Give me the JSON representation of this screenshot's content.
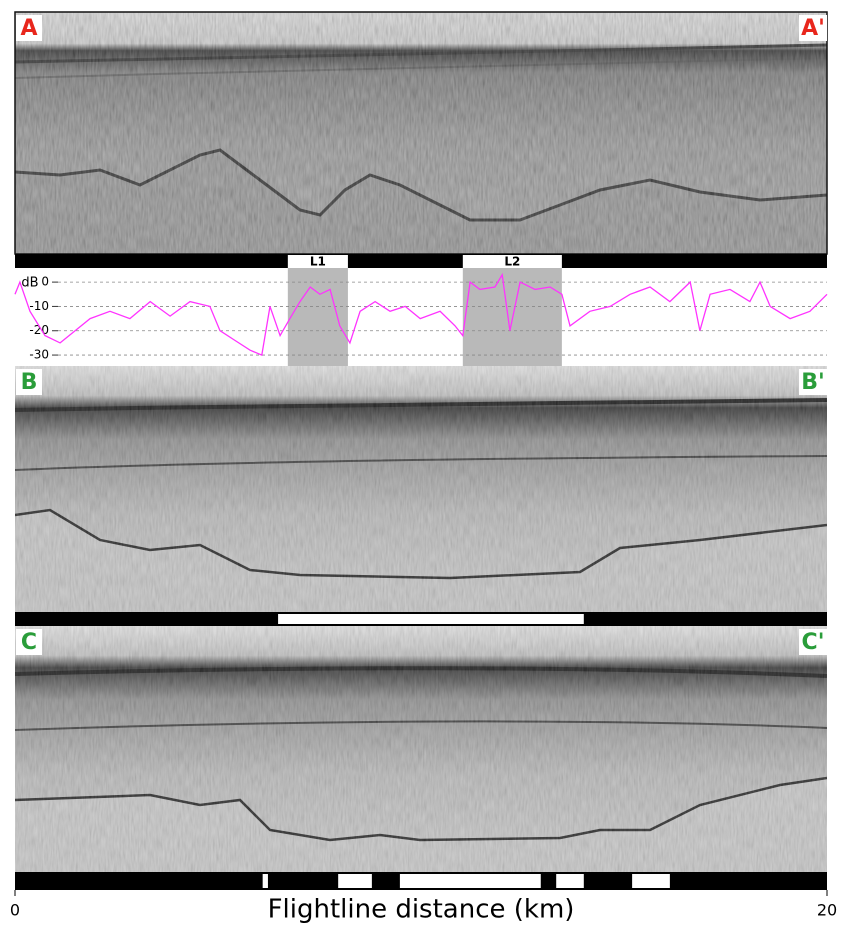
{
  "chart_data": {
    "type": "line",
    "y_label": "dB",
    "x_label": "Flightline distance (km)",
    "x": [
      0,
      0.12,
      0.37,
      0.74,
      1.11,
      1.48,
      1.85,
      2.34,
      2.83,
      3.33,
      3.82,
      4.31,
      4.8,
      5.05,
      5.42,
      5.79,
      6.08,
      6.28,
      6.53,
      6.77,
      7.02,
      7.27,
      7.51,
      7.76,
      8.0,
      8.25,
      8.5,
      8.87,
      9.24,
      9.61,
      9.98,
      10.47,
      10.84,
      11.03,
      11.21,
      11.45,
      11.82,
      12.0,
      12.19,
      12.44,
      12.81,
      13.18,
      13.47,
      13.67,
      14.16,
      14.66,
      15.15,
      15.64,
      16.13,
      16.63,
      16.87,
      17.12,
      17.61,
      18.1,
      18.35,
      18.6,
      19.09,
      19.58,
      20
    ],
    "values": [
      -5,
      0,
      -12,
      -22,
      -25,
      -20,
      -15,
      -12,
      -15,
      -8,
      -14,
      -8,
      -10,
      -20,
      -24,
      -28,
      -30,
      -10,
      -22,
      -15,
      -8,
      -2,
      -5,
      -3,
      -18,
      -25,
      -12,
      -8,
      -12,
      -10,
      -15,
      -12,
      -18,
      -22,
      0,
      -3,
      -2,
      3,
      -20,
      0,
      -3,
      -2,
      -5,
      -18,
      -12,
      -10,
      -5,
      -2,
      -8,
      0,
      -20,
      -5,
      -3,
      -8,
      0,
      -10,
      -15,
      -12,
      -5
    ],
    "color": "#ff33ff",
    "xlim": [
      0,
      20
    ],
    "xticks": [
      0,
      20
    ],
    "ylim": [
      -34.5,
      5.8
    ],
    "yticks": [
      0,
      -10,
      -20,
      -30
    ],
    "grid": true,
    "highlights": [
      {
        "label": "L1",
        "range": [
          6.72,
          8.2
        ]
      },
      {
        "label": "L2",
        "range": [
          11.03,
          13.47
        ]
      }
    ]
  },
  "panels": [
    {
      "start_label": "A",
      "end_label": "A'",
      "label_color": "#e8261c"
    },
    {
      "start_label": "B",
      "end_label": "B'",
      "label_color": "#2a9d3a",
      "segments": [
        [
          6.48,
          14.01
        ]
      ]
    },
    {
      "start_label": "C",
      "end_label": "C'",
      "label_color": "#2a9d3a",
      "segments": [
        [
          6.1,
          6.23
        ],
        [
          7.96,
          8.79
        ],
        [
          9.48,
          12.95
        ],
        [
          13.33,
          14.01
        ],
        [
          15.2,
          16.13
        ]
      ]
    }
  ]
}
